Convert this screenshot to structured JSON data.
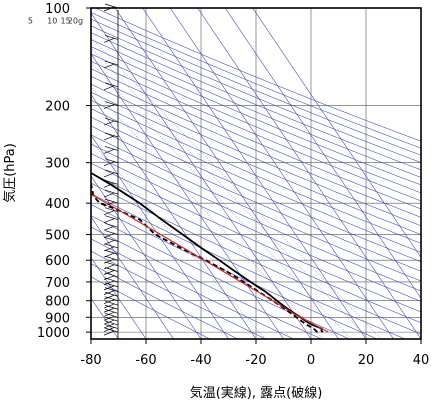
{
  "chart_data": {
    "type": "skew-t",
    "title": "",
    "xlabel": "気温(実線), 露点(破線)",
    "ylabel": "気圧(hPa)",
    "x_ticks": [
      -80,
      -60,
      -40,
      -20,
      0,
      20,
      40
    ],
    "xlim": [
      -80,
      40
    ],
    "y_ticks": [
      100,
      200,
      300,
      400,
      500,
      600,
      700,
      800,
      900,
      1000
    ],
    "ylim": [
      1050,
      100
    ],
    "y_scale": "log",
    "grid": true,
    "mixing_ratio_labels": [
      "1",
      "5",
      "10",
      "15",
      "20g"
    ],
    "mixing_ratios_gkg": [
      1,
      5,
      10,
      15,
      20
    ],
    "series": [
      {
        "name": "気温",
        "style": "solid",
        "color": "#000000",
        "points": [
          {
            "p": 1000,
            "t": 6.0
          },
          {
            "p": 990,
            "t": 5.8
          },
          {
            "p": 975,
            "t": 6.5
          },
          {
            "p": 950,
            "t": 4.0
          },
          {
            "p": 925,
            "t": 2.5
          },
          {
            "p": 900,
            "t": 1.5
          },
          {
            "p": 850,
            "t": -1.0
          },
          {
            "p": 800,
            "t": -3.0
          },
          {
            "p": 750,
            "t": -5.0
          },
          {
            "p": 700,
            "t": -8.0
          },
          {
            "p": 650,
            "t": -11.0
          },
          {
            "p": 600,
            "t": -14.0
          },
          {
            "p": 550,
            "t": -17.5
          },
          {
            "p": 500,
            "t": -21.0
          },
          {
            "p": 450,
            "t": -25.0
          },
          {
            "p": 400,
            "t": -29.0
          },
          {
            "p": 350,
            "t": -35.0
          },
          {
            "p": 300,
            "t": -43.0
          },
          {
            "p": 280,
            "t": -45.5
          },
          {
            "p": 250,
            "t": -46.5
          },
          {
            "p": 230,
            "t": -47.5
          },
          {
            "p": 200,
            "t": -50.5
          },
          {
            "p": 180,
            "t": -51.5
          },
          {
            "p": 160,
            "t": -55.0
          },
          {
            "p": 150,
            "t": -57.5
          },
          {
            "p": 140,
            "t": -58.5
          },
          {
            "p": 130,
            "t": -57.0
          },
          {
            "p": 120,
            "t": -55.5
          },
          {
            "p": 110,
            "t": -56.0
          },
          {
            "p": 100,
            "t": -58.5
          }
        ]
      },
      {
        "name": "露点",
        "style": "dashed",
        "color": "#000000",
        "points": [
          {
            "p": 1000,
            "t": 4.0
          },
          {
            "p": 975,
            "t": 3.5
          },
          {
            "p": 950,
            "t": 2.0
          },
          {
            "p": 925,
            "t": 1.0
          },
          {
            "p": 900,
            "t": 0.0
          },
          {
            "p": 850,
            "t": -2.0
          },
          {
            "p": 800,
            "t": -4.5
          },
          {
            "p": 750,
            "t": -7.5
          },
          {
            "p": 700,
            "t": -10.5
          },
          {
            "p": 650,
            "t": -14.0
          },
          {
            "p": 600,
            "t": -19.0
          },
          {
            "p": 550,
            "t": -25.0
          },
          {
            "p": 500,
            "t": -31.0
          },
          {
            "p": 450,
            "t": -33.0
          },
          {
            "p": 420,
            "t": -38.5
          },
          {
            "p": 400,
            "t": -43.5
          },
          {
            "p": 380,
            "t": -44.0
          },
          {
            "p": 350,
            "t": -42.0
          },
          {
            "p": 330,
            "t": -47.0
          },
          {
            "p": 320,
            "t": -52.0
          },
          {
            "p": 315,
            "t": -60.0
          },
          {
            "p": 315,
            "t": -80.0
          }
        ]
      },
      {
        "name": "",
        "style": "solid",
        "color": "#e02020",
        "points": [
          {
            "p": 1000,
            "t": 8.0
          },
          {
            "p": 900,
            "t": 1.5
          },
          {
            "p": 850,
            "t": -1.5
          },
          {
            "p": 800,
            "t": -4.5
          },
          {
            "p": 700,
            "t": -11.5
          },
          {
            "p": 600,
            "t": -19.5
          },
          {
            "p": 500,
            "t": -29.0
          },
          {
            "p": 400,
            "t": -41.0
          },
          {
            "p": 300,
            "t": -57.0
          },
          {
            "p": 250,
            "t": -67.0
          },
          {
            "p": 225,
            "t": -73.0
          }
        ]
      }
    ]
  }
}
